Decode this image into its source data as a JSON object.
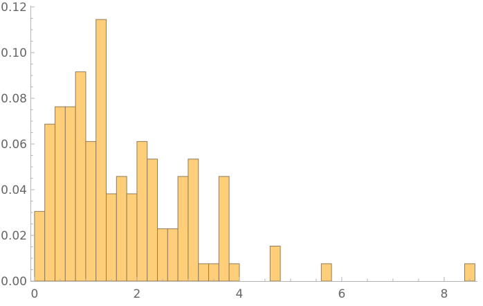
{
  "chart_data": {
    "type": "bar",
    "subtype": "histogram",
    "bin_width": 0.2,
    "x_bins": [
      {
        "start": 0.0,
        "value": 0.0305
      },
      {
        "start": 0.2,
        "value": 0.0687
      },
      {
        "start": 0.4,
        "value": 0.0763
      },
      {
        "start": 0.6,
        "value": 0.0763
      },
      {
        "start": 0.8,
        "value": 0.0916
      },
      {
        "start": 1.0,
        "value": 0.0611
      },
      {
        "start": 1.2,
        "value": 0.1145
      },
      {
        "start": 1.4,
        "value": 0.0382
      },
      {
        "start": 1.6,
        "value": 0.0458
      },
      {
        "start": 1.8,
        "value": 0.0382
      },
      {
        "start": 2.0,
        "value": 0.0611
      },
      {
        "start": 2.2,
        "value": 0.0534
      },
      {
        "start": 2.4,
        "value": 0.0229
      },
      {
        "start": 2.6,
        "value": 0.0229
      },
      {
        "start": 2.8,
        "value": 0.0458
      },
      {
        "start": 3.0,
        "value": 0.0534
      },
      {
        "start": 3.2,
        "value": 0.0076
      },
      {
        "start": 3.4,
        "value": 0.0076
      },
      {
        "start": 3.6,
        "value": 0.0458
      },
      {
        "start": 3.8,
        "value": 0.0076
      },
      {
        "start": 4.6,
        "value": 0.0153
      },
      {
        "start": 5.6,
        "value": 0.0076
      },
      {
        "start": 8.4,
        "value": 0.0076
      }
    ],
    "xlim": [
      -0.08,
      8.65
    ],
    "ylim": [
      0,
      0.12
    ],
    "x_ticks": [
      {
        "value": 0,
        "label": "0"
      },
      {
        "value": 2,
        "label": "2"
      },
      {
        "value": 4,
        "label": "4"
      },
      {
        "value": 6,
        "label": "6"
      },
      {
        "value": 8,
        "label": "8"
      }
    ],
    "y_ticks": [
      {
        "value": 0.0,
        "label": "0.00"
      },
      {
        "value": 0.02,
        "label": "0.02"
      },
      {
        "value": 0.04,
        "label": "0.04"
      },
      {
        "value": 0.06,
        "label": "0.06"
      },
      {
        "value": 0.08,
        "label": "0.08"
      },
      {
        "value": 0.1,
        "label": "0.10"
      },
      {
        "value": 0.12,
        "label": "0.12"
      }
    ],
    "x_minor_step": 0.5,
    "y_minor_step": 0.005,
    "grid": false,
    "legend": "none",
    "colors": {
      "bar_fill": "#FFCE78",
      "bar_stroke": "#8E7A5C",
      "axis": "#B3B3B3",
      "tick_label": "#666666"
    },
    "title": "",
    "xlabel": "",
    "ylabel": ""
  }
}
